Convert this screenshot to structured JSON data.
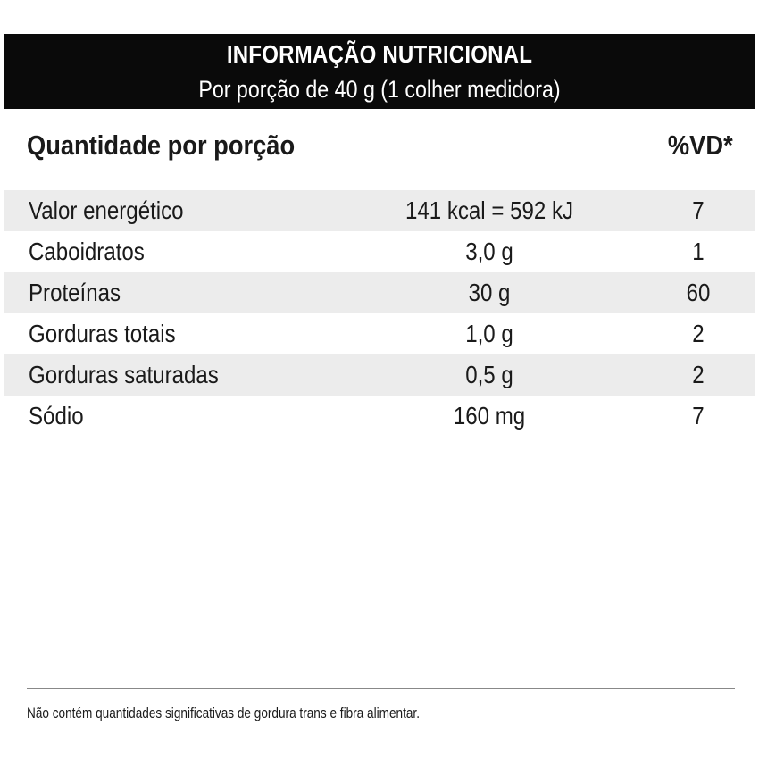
{
  "header": {
    "title": "INFORMAÇÃO NUTRICIONAL",
    "subtitle": "Por porção de 40 g (1 colher medidora)"
  },
  "columns": {
    "quantity_heading": "Quantidade por porção",
    "vd_heading": "%VD*"
  },
  "rows": [
    {
      "name": "Valor energético",
      "amount": "141 kcal = 592 kJ",
      "vd": "7"
    },
    {
      "name": "Caboidratos",
      "amount": "3,0 g",
      "vd": "1"
    },
    {
      "name": "Proteínas",
      "amount": "30 g",
      "vd": "60"
    },
    {
      "name": "Gorduras totais",
      "amount": "1,0 g",
      "vd": "2"
    },
    {
      "name": "Gorduras saturadas",
      "amount": "0,5 g",
      "vd": "2"
    },
    {
      "name": "Sódio",
      "amount": "160 mg",
      "vd": "7"
    }
  ],
  "footnote": "Não contém quantidades significativas de gordura trans e fibra alimentar."
}
